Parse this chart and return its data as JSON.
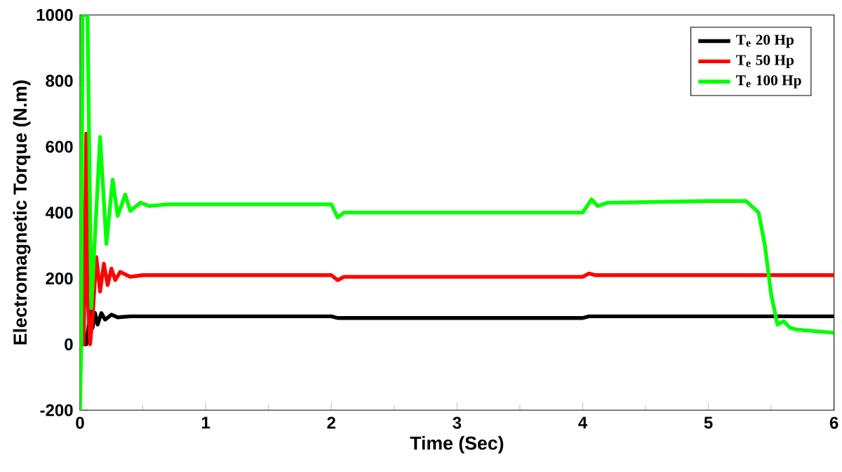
{
  "chart_data": {
    "type": "line",
    "xlabel": "Time (Sec)",
    "ylabel": "Electromagnetic Torque (N.m)",
    "xlim": [
      0,
      6
    ],
    "ylim": [
      -200,
      1000
    ],
    "xticks": [
      0,
      1,
      2,
      3,
      4,
      5,
      6
    ],
    "yticks": [
      -200,
      0,
      200,
      400,
      600,
      800,
      1000
    ],
    "legend": "top right",
    "series": [
      {
        "name": "T$_{e}$ 20 Hp",
        "color": "#000000",
        "x": [
          0,
          0.05,
          0.07,
          0.09,
          0.1,
          0.12,
          0.14,
          0.17,
          0.2,
          0.25,
          0.3,
          0.4,
          1.0,
          2.0,
          2.05,
          3.0,
          4.0,
          4.05,
          5.0,
          6.0
        ],
        "values": [
          0,
          0,
          60,
          100,
          50,
          95,
          60,
          95,
          75,
          90,
          82,
          85,
          85,
          85,
          80,
          80,
          80,
          85,
          85,
          85
        ]
      },
      {
        "name": "T$_{e}$ 50 Hp",
        "color": "#ff0000",
        "x": [
          0,
          0.03,
          0.05,
          0.06,
          0.08,
          0.1,
          0.13,
          0.16,
          0.19,
          0.22,
          0.25,
          0.28,
          0.32,
          0.4,
          0.5,
          1.0,
          2.0,
          2.05,
          2.1,
          3.0,
          4.0,
          4.05,
          4.1,
          5.0,
          6.0
        ],
        "values": [
          0,
          0,
          640,
          150,
          0,
          80,
          265,
          160,
          245,
          180,
          230,
          195,
          220,
          205,
          210,
          210,
          210,
          195,
          205,
          205,
          205,
          215,
          210,
          210,
          210
        ]
      },
      {
        "name": "T$_{e}$ 100 Hp",
        "color": "#00ff00",
        "x": [
          0,
          0.01,
          0.02,
          0.06,
          0.09,
          0.16,
          0.21,
          0.26,
          0.3,
          0.36,
          0.4,
          0.48,
          0.55,
          0.7,
          1.0,
          2.0,
          2.05,
          2.1,
          2.2,
          3.0,
          4.0,
          4.07,
          4.12,
          4.2,
          5.0,
          5.3,
          5.4,
          5.45,
          5.5,
          5.55,
          5.6,
          5.65,
          5.7,
          6.0
        ],
        "values": [
          -200,
          0,
          1000,
          1000,
          110,
          630,
          305,
          500,
          390,
          455,
          405,
          430,
          420,
          425,
          425,
          425,
          385,
          400,
          400,
          400,
          400,
          440,
          420,
          430,
          435,
          435,
          400,
          300,
          150,
          60,
          70,
          50,
          45,
          35
        ]
      }
    ]
  }
}
